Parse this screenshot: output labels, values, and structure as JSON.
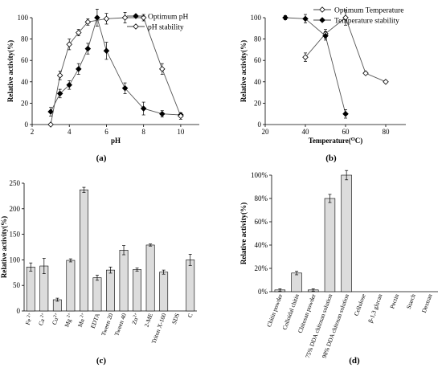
{
  "chart_data": [
    {
      "id": "a",
      "panel_label": "(a)",
      "type": "line",
      "xlabel": "pH",
      "ylabel": "Relative activity(%)",
      "xlim": [
        2,
        11
      ],
      "ylim": [
        0,
        100
      ],
      "xticks": [
        2,
        4,
        6,
        8,
        10
      ],
      "yticks": [
        0,
        20,
        40,
        60,
        80,
        100
      ],
      "legend_position": "top-right",
      "series": [
        {
          "name": "Optimum pH",
          "marker": "filled-diamond",
          "points": [
            {
              "x": 3.0,
              "y": 12,
              "err": 4
            },
            {
              "x": 3.5,
              "y": 29,
              "err": 4
            },
            {
              "x": 4.0,
              "y": 37,
              "err": 4
            },
            {
              "x": 4.5,
              "y": 52,
              "err": 5
            },
            {
              "x": 5.0,
              "y": 71,
              "err": 5
            },
            {
              "x": 5.5,
              "y": 100,
              "err": 8
            },
            {
              "x": 6.0,
              "y": 69,
              "err": 8
            },
            {
              "x": 7.0,
              "y": 34,
              "err": 5
            },
            {
              "x": 8.0,
              "y": 15,
              "err": 6
            },
            {
              "x": 9.0,
              "y": 10,
              "err": 3
            },
            {
              "x": 10.0,
              "y": 9,
              "err": 2
            }
          ]
        },
        {
          "name": "pH stability",
          "marker": "open-diamond",
          "points": [
            {
              "x": 3.0,
              "y": 0,
              "err": 0
            },
            {
              "x": 3.5,
              "y": 46,
              "err": 4
            },
            {
              "x": 4.0,
              "y": 75,
              "err": 5
            },
            {
              "x": 4.5,
              "y": 86,
              "err": 3
            },
            {
              "x": 5.0,
              "y": 96,
              "err": 3
            },
            {
              "x": 6.0,
              "y": 99,
              "err": 5
            },
            {
              "x": 7.0,
              "y": 100,
              "err": 5
            },
            {
              "x": 8.0,
              "y": 100,
              "err": 3
            },
            {
              "x": 9.0,
              "y": 52,
              "err": 5
            },
            {
              "x": 10.0,
              "y": 8,
              "err": 3
            }
          ]
        }
      ]
    },
    {
      "id": "b",
      "panel_label": "(b)",
      "type": "line",
      "xlabel": "Temperature(",
      "xlabel_sup": "O",
      "xlabel_end": "C)",
      "ylabel": "Relative activity(%)",
      "xlim": [
        20,
        90
      ],
      "ylim": [
        0,
        100
      ],
      "xticks": [
        20,
        40,
        60,
        80
      ],
      "yticks": [
        0,
        20,
        40,
        60,
        80,
        100
      ],
      "legend_position": "top-right",
      "series": [
        {
          "name": "Optimum Temperature",
          "marker": "open-diamond",
          "points": [
            {
              "x": 40,
              "y": 63,
              "err": 4
            },
            {
              "x": 50,
              "y": 85,
              "err": 4
            },
            {
              "x": 60,
              "y": 100,
              "err": 7
            },
            {
              "x": 70,
              "y": 48,
              "err": 0
            },
            {
              "x": 80,
              "y": 40,
              "err": 0
            }
          ]
        },
        {
          "name": "Temperature stability",
          "marker": "filled-diamond",
          "points": [
            {
              "x": 30,
              "y": 100,
              "err": 2
            },
            {
              "x": 40,
              "y": 99,
              "err": 4
            },
            {
              "x": 50,
              "y": 83,
              "err": 4
            },
            {
              "x": 60,
              "y": 10,
              "err": 4
            }
          ]
        }
      ]
    },
    {
      "id": "c",
      "panel_label": "(c)",
      "type": "bar",
      "ylabel": "Relative activity(%)",
      "ylim": [
        0,
        250
      ],
      "yticks": [
        0,
        50,
        100,
        150,
        200,
        250
      ],
      "categories": [
        {
          "base": "Fe",
          "sup": " 2+"
        },
        {
          "base": "Ca",
          "sup": " 2+"
        },
        {
          "base": "Cu",
          "sup": "2+"
        },
        {
          "base": "Mg",
          "sup": " 2+"
        },
        {
          "base": "Mn",
          "sup": " 2+"
        },
        {
          "base": "EDTA",
          "sup": ""
        },
        {
          "base": "Tween 20",
          "sup": ""
        },
        {
          "base": "Tween 40",
          "sup": ""
        },
        {
          "base": "Zn",
          "sup": "2+"
        },
        {
          "base": "2-ME",
          "sup": ""
        },
        {
          "base": "Triton X-100",
          "sup": ""
        },
        {
          "base": "SDS",
          "sup": ""
        },
        {
          "base": "C",
          "sup": ""
        }
      ],
      "values": [
        86,
        88,
        22,
        99,
        237,
        65,
        80,
        119,
        81,
        129,
        76,
        0,
        100
      ],
      "errors": [
        8,
        15,
        3,
        3,
        5,
        5,
        6,
        9,
        3,
        2,
        4,
        0,
        11
      ]
    },
    {
      "id": "d",
      "panel_label": "(d)",
      "type": "bar",
      "ylabel": "Relative activity(%)",
      "ylim": [
        0,
        1.0
      ],
      "ytick_labels": [
        "0%",
        "20%",
        "40%",
        "60%",
        "80%",
        "100%"
      ],
      "categories": [
        "Chitin powder",
        "Colloidal chitin",
        "Chitosan powder",
        "75% DDA chitosan solution",
        "98% DDA chitosan solution",
        "Cellulose",
        "β-1,3 glucan",
        "Pectin",
        "Starch",
        "Dextran"
      ],
      "values": [
        0.015,
        0.16,
        0.015,
        0.8,
        1.0,
        0,
        0,
        0,
        0,
        0
      ],
      "errors": [
        0.01,
        0.015,
        0.01,
        0.035,
        0.04,
        0,
        0,
        0,
        0,
        0
      ]
    }
  ]
}
